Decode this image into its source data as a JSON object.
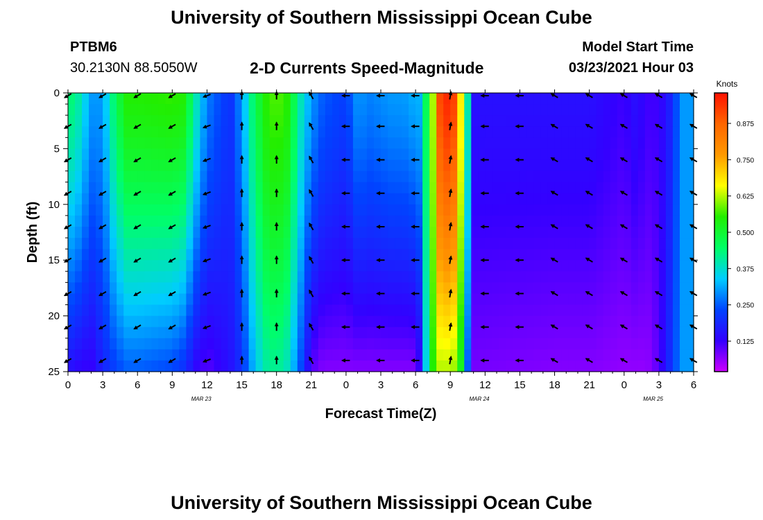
{
  "header": {
    "title": "University of Southern Mississippi Ocean Cube",
    "station": "PTBM6",
    "coords": "30.2130N 88.5050W",
    "product": "2-D Currents Speed-Magnitude",
    "model_start_label": "Model Start Time",
    "model_start_value": "03/23/2021 Hour 03"
  },
  "footer": {
    "title": "University of Southern Mississippi Ocean Cube"
  },
  "chart_data": {
    "type": "heatmap",
    "title": "2-D Currents Speed-Magnitude",
    "xlabel": "Forecast Time(Z)",
    "ylabel": "Depth (ft)",
    "x_ticks": [
      "0",
      "3",
      "6",
      "9",
      "12",
      "15",
      "18",
      "21",
      "0",
      "3",
      "6",
      "9",
      "12",
      "15",
      "18",
      "21",
      "0",
      "3",
      "6"
    ],
    "x_range_hours": [
      0,
      54
    ],
    "y_ticks": [
      "0",
      "5",
      "10",
      "15",
      "20",
      "25"
    ],
    "y_range": [
      0,
      25
    ],
    "date_labels": [
      {
        "text": "MAR 23",
        "hour": 11.5
      },
      {
        "text": "MAR 24",
        "hour": 35.5
      },
      {
        "text": "MAR 25",
        "hour": 50.5
      }
    ],
    "colorbar": {
      "title": "Knots",
      "ticks": [
        "0.875",
        "0.750",
        "0.625",
        "0.500",
        "0.375",
        "0.250",
        "0.125"
      ],
      "tick_values": [
        0.875,
        0.75,
        0.625,
        0.5,
        0.375,
        0.25,
        0.125
      ],
      "range": [
        0.02,
        0.98
      ],
      "colors": [
        "#cc00ff",
        "#3300ff",
        "#0044ff",
        "#00ccff",
        "#00ff66",
        "#22ee00",
        "#ffff00",
        "#ff9900",
        "#ff6600",
        "#ff1100"
      ]
    },
    "speed_profile": {
      "hours": [
        0,
        1,
        2,
        3,
        4,
        5,
        6,
        9,
        10,
        11,
        12,
        14,
        15,
        16,
        17,
        18,
        19,
        20,
        21,
        22,
        24,
        25,
        26,
        28,
        29,
        30,
        30.5,
        31,
        31.5,
        32,
        32.5,
        33,
        33.5,
        34,
        34.5,
        35,
        42,
        45,
        48,
        49,
        50,
        51,
        52,
        53,
        54
      ],
      "surface": [
        0.45,
        0.4,
        0.3,
        0.3,
        0.45,
        0.55,
        0.55,
        0.56,
        0.55,
        0.4,
        0.28,
        0.2,
        0.3,
        0.45,
        0.55,
        0.58,
        0.55,
        0.4,
        0.3,
        0.25,
        0.22,
        0.3,
        0.28,
        0.3,
        0.3,
        0.32,
        0.32,
        0.5,
        0.62,
        0.9,
        0.95,
        0.95,
        0.9,
        0.62,
        0.4,
        0.15,
        0.15,
        0.15,
        0.12,
        0.15,
        0.12,
        0.12,
        0.18,
        0.3,
        0.3
      ],
      "bottom": [
        0.15,
        0.13,
        0.12,
        0.18,
        0.22,
        0.25,
        0.25,
        0.23,
        0.2,
        0.13,
        0.1,
        0.15,
        0.2,
        0.32,
        0.4,
        0.42,
        0.38,
        0.25,
        0.1,
        0.07,
        0.07,
        0.07,
        0.07,
        0.07,
        0.07,
        0.07,
        0.15,
        0.4,
        0.55,
        0.62,
        0.62,
        0.62,
        0.6,
        0.5,
        0.25,
        0.08,
        0.07,
        0.07,
        0.06,
        0.06,
        0.06,
        0.1,
        0.2,
        0.3,
        0.3
      ]
    },
    "vector_rows_depth_ft": [
      0,
      3,
      6,
      9,
      12,
      15,
      18,
      21,
      24
    ],
    "vector_columns_hour": [
      0,
      3,
      6,
      9,
      12,
      15,
      18,
      21,
      24,
      27,
      30,
      33,
      36,
      39,
      42,
      45,
      48,
      51,
      54
    ],
    "vector_column_heading_deg": [
      240,
      240,
      240,
      240,
      250,
      0,
      0,
      330,
      270,
      270,
      270,
      10,
      270,
      270,
      300,
      300,
      300,
      300,
      300
    ]
  }
}
